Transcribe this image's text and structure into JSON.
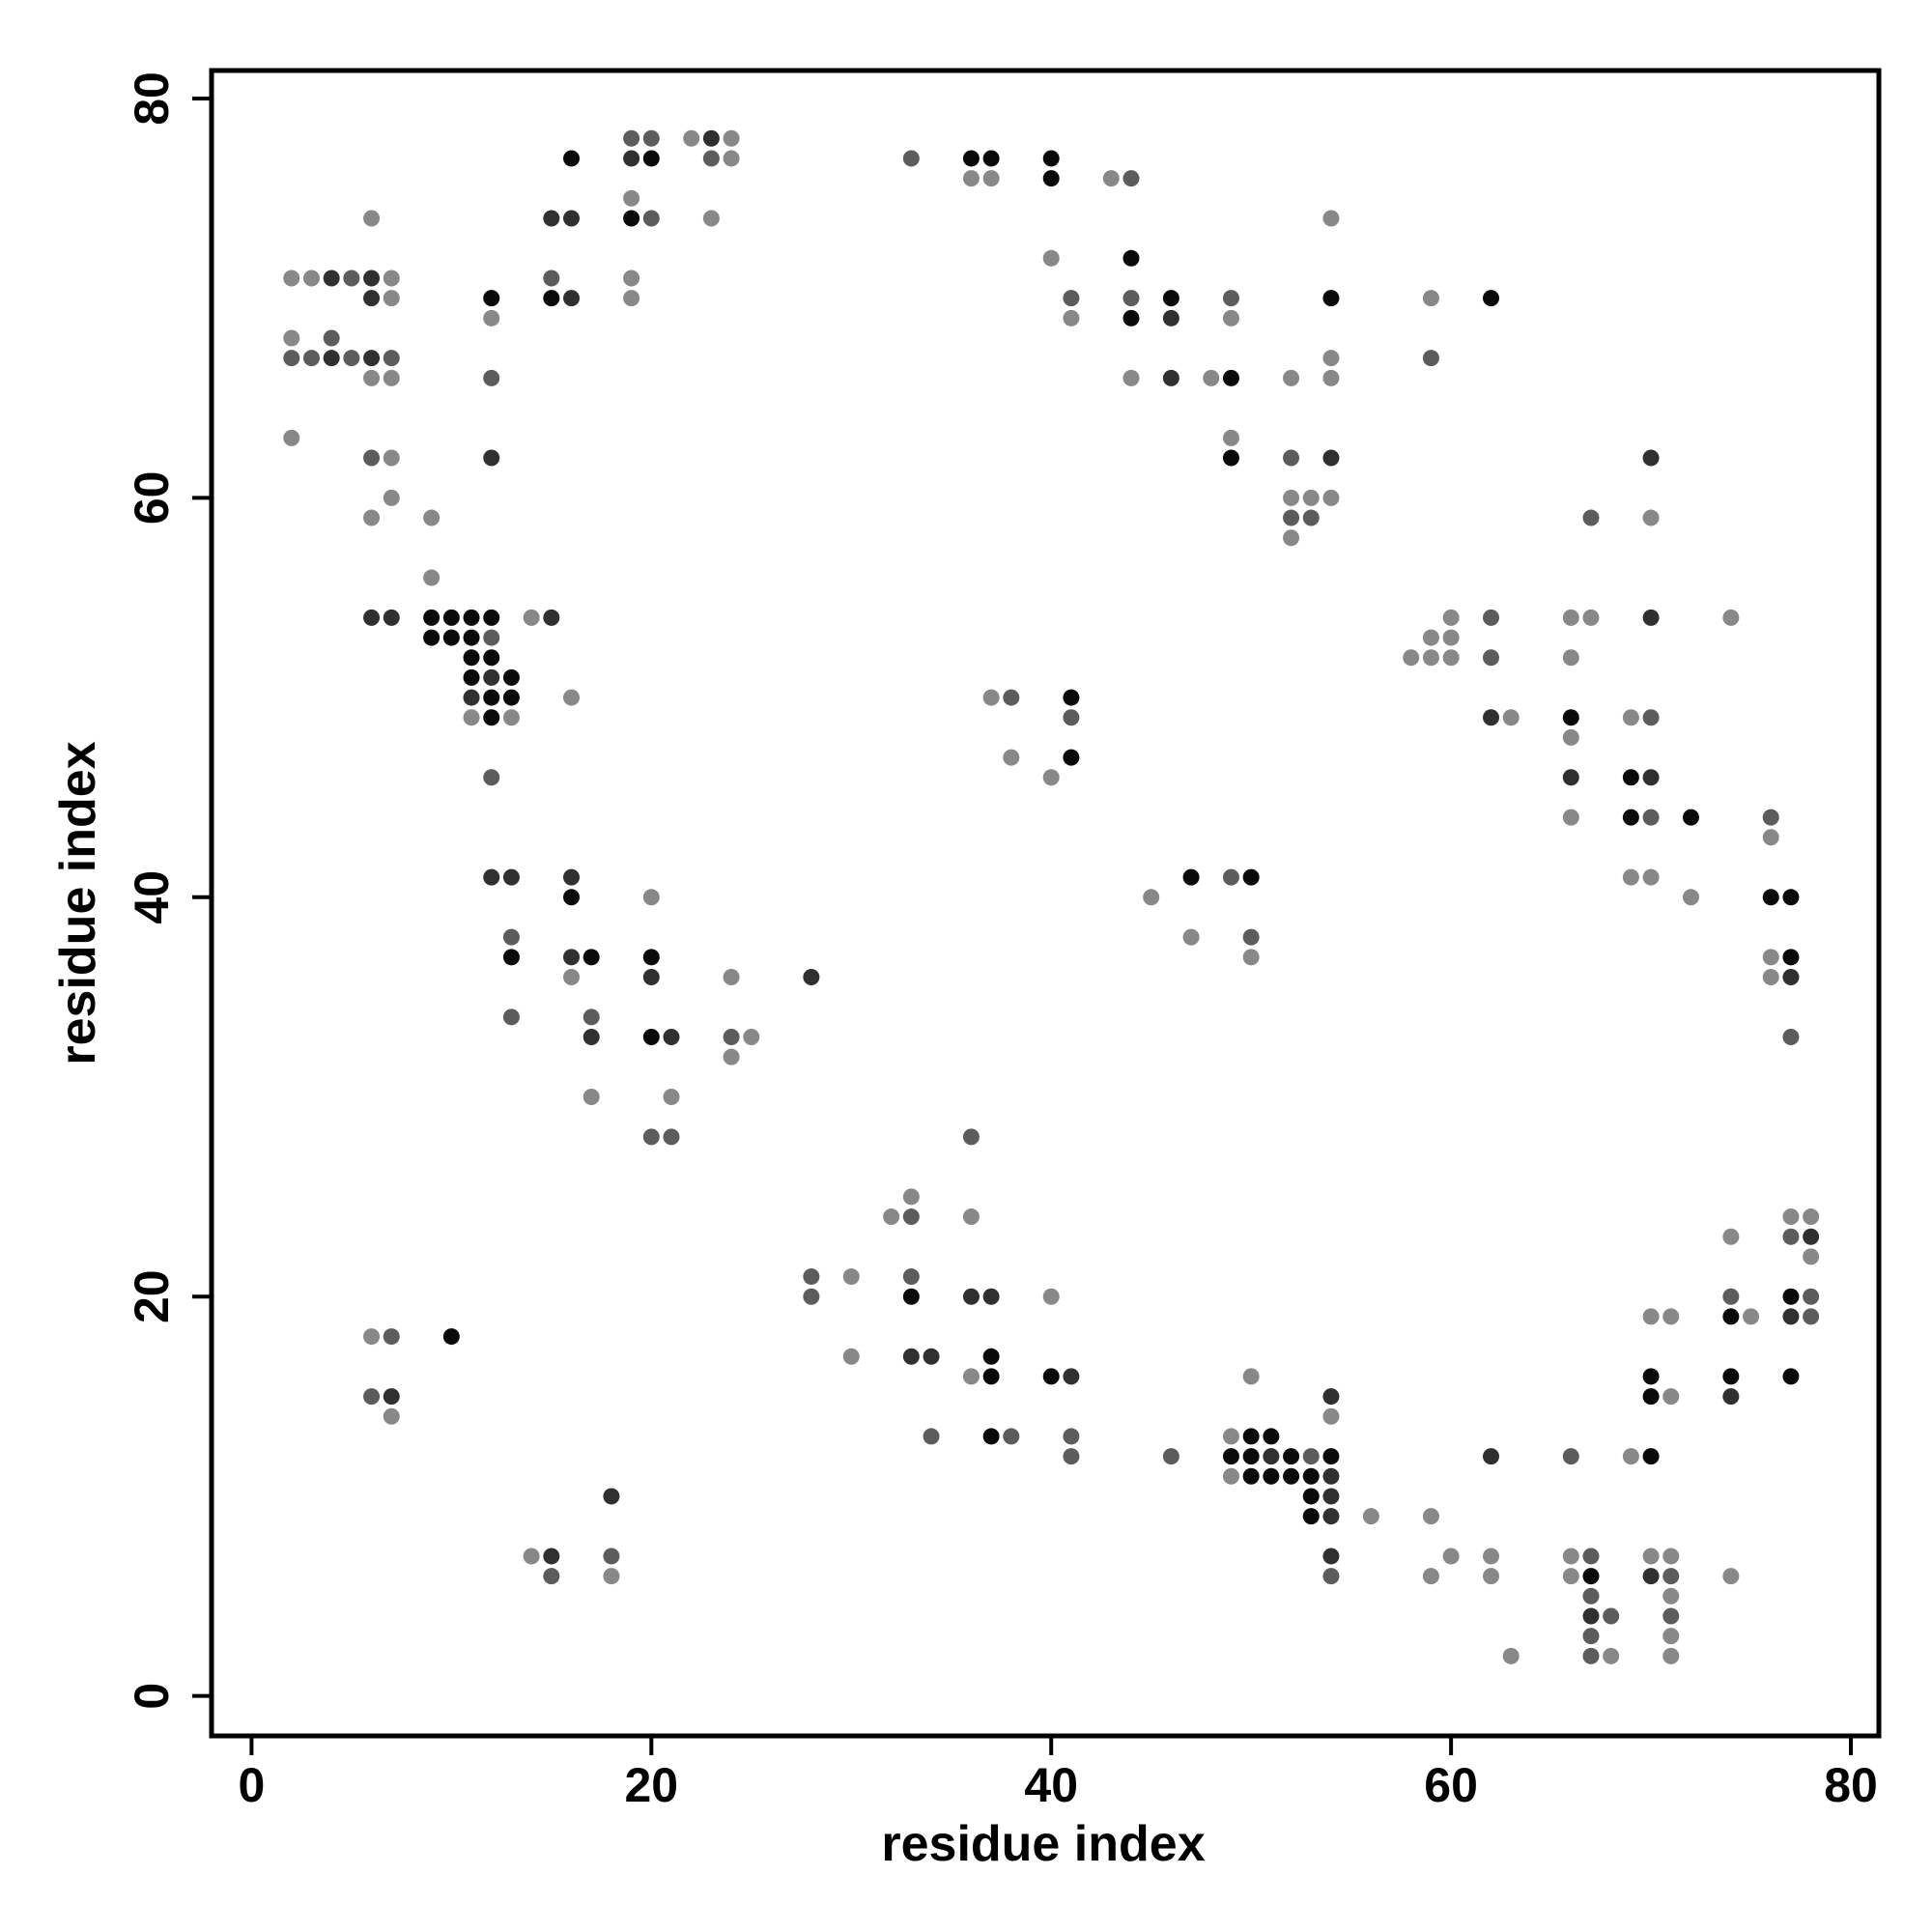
{
  "chart_data": {
    "type": "scatter",
    "title": "",
    "xlabel": "residue index",
    "ylabel": "residue index",
    "xlim": [
      -2,
      81.4
    ],
    "ylim": [
      -2,
      81.4
    ],
    "xticks": [
      0,
      20,
      40,
      60,
      80
    ],
    "yticks": [
      0,
      20,
      40,
      60,
      80
    ],
    "xtick_labels": [
      "0",
      "20",
      "40",
      "60",
      "80"
    ],
    "ytick_labels": [
      "0",
      "20",
      "40",
      "60",
      "80"
    ],
    "grid": false,
    "legend": "none",
    "shade_levels": {
      "1": "#888888",
      "2": "#5c5c5c",
      "3": "#303030",
      "4": "#0a0a0a"
    },
    "points": [
      [
        2,
        71,
        1
      ],
      [
        3,
        71,
        1
      ],
      [
        4,
        71,
        3
      ],
      [
        5,
        71,
        2
      ],
      [
        6,
        71,
        3
      ],
      [
        7,
        71,
        1
      ],
      [
        6,
        70,
        3
      ],
      [
        7,
        70,
        1
      ],
      [
        2,
        68,
        1
      ],
      [
        4,
        68,
        2
      ],
      [
        2,
        67,
        2
      ],
      [
        3,
        67,
        2
      ],
      [
        4,
        67,
        3
      ],
      [
        5,
        67,
        2
      ],
      [
        6,
        67,
        3
      ],
      [
        7,
        67,
        2
      ],
      [
        6,
        66,
        1
      ],
      [
        7,
        66,
        1
      ],
      [
        6,
        74,
        1
      ],
      [
        2,
        63,
        1
      ],
      [
        6,
        62,
        2
      ],
      [
        7,
        62,
        1
      ],
      [
        7,
        60,
        1
      ],
      [
        6,
        59,
        1
      ],
      [
        9,
        59,
        1
      ],
      [
        12,
        70,
        4
      ],
      [
        12,
        69,
        1
      ],
      [
        12,
        66,
        2
      ],
      [
        12,
        62,
        3
      ],
      [
        15,
        74,
        3
      ],
      [
        16,
        74,
        3
      ],
      [
        16,
        77,
        4
      ],
      [
        15,
        71,
        2
      ],
      [
        15,
        70,
        4
      ],
      [
        16,
        70,
        3
      ],
      [
        19,
        78,
        2
      ],
      [
        20,
        78,
        2
      ],
      [
        19,
        77,
        3
      ],
      [
        20,
        77,
        4
      ],
      [
        19,
        75,
        1
      ],
      [
        19,
        74,
        4
      ],
      [
        20,
        74,
        2
      ],
      [
        19,
        71,
        1
      ],
      [
        19,
        70,
        1
      ],
      [
        22,
        78,
        1
      ],
      [
        23,
        78,
        3
      ],
      [
        24,
        78,
        1
      ],
      [
        23,
        77,
        2
      ],
      [
        24,
        77,
        1
      ],
      [
        23,
        74,
        1
      ],
      [
        33,
        77,
        2
      ],
      [
        36,
        77,
        4
      ],
      [
        37,
        77,
        4
      ],
      [
        36,
        76,
        1
      ],
      [
        37,
        76,
        1
      ],
      [
        40,
        77,
        4
      ],
      [
        40,
        76,
        4
      ],
      [
        43,
        76,
        1
      ],
      [
        44,
        76,
        2
      ],
      [
        40,
        72,
        1
      ],
      [
        44,
        72,
        4
      ],
      [
        41,
        70,
        2
      ],
      [
        44,
        70,
        2
      ],
      [
        46,
        70,
        4
      ],
      [
        41,
        69,
        1
      ],
      [
        44,
        69,
        4
      ],
      [
        46,
        69,
        3
      ],
      [
        44,
        66,
        1
      ],
      [
        46,
        66,
        3
      ],
      [
        48,
        66,
        1
      ],
      [
        49,
        66,
        4
      ],
      [
        49,
        70,
        2
      ],
      [
        49,
        69,
        1
      ],
      [
        49,
        63,
        1
      ],
      [
        49,
        62,
        4
      ],
      [
        54,
        74,
        1
      ],
      [
        54,
        70,
        4
      ],
      [
        54,
        67,
        1
      ],
      [
        52,
        66,
        1
      ],
      [
        54,
        66,
        1
      ],
      [
        52,
        62,
        2
      ],
      [
        54,
        62,
        3
      ],
      [
        52,
        60,
        1
      ],
      [
        53,
        60,
        1
      ],
      [
        54,
        60,
        1
      ],
      [
        52,
        59,
        2
      ],
      [
        53,
        59,
        2
      ],
      [
        52,
        58,
        1
      ],
      [
        59,
        70,
        1
      ],
      [
        62,
        70,
        4
      ],
      [
        59,
        67,
        2
      ],
      [
        9,
        56,
        1
      ],
      [
        6,
        54,
        3
      ],
      [
        7,
        54,
        3
      ],
      [
        9,
        54,
        4
      ],
      [
        10,
        54,
        4
      ],
      [
        11,
        54,
        4
      ],
      [
        12,
        54,
        4
      ],
      [
        14,
        54,
        1
      ],
      [
        15,
        54,
        3
      ],
      [
        9,
        53,
        4
      ],
      [
        10,
        53,
        4
      ],
      [
        11,
        53,
        4
      ],
      [
        12,
        53,
        2
      ],
      [
        11,
        52,
        4
      ],
      [
        12,
        52,
        4
      ],
      [
        11,
        51,
        4
      ],
      [
        12,
        51,
        3
      ],
      [
        13,
        51,
        4
      ],
      [
        11,
        50,
        3
      ],
      [
        12,
        50,
        4
      ],
      [
        13,
        50,
        4
      ],
      [
        11,
        49,
        1
      ],
      [
        12,
        49,
        4
      ],
      [
        13,
        49,
        1
      ],
      [
        16,
        50,
        1
      ],
      [
        12,
        46,
        2
      ],
      [
        37,
        50,
        1
      ],
      [
        38,
        50,
        2
      ],
      [
        41,
        50,
        4
      ],
      [
        41,
        49,
        2
      ],
      [
        38,
        47,
        1
      ],
      [
        41,
        47,
        4
      ],
      [
        40,
        46,
        1
      ],
      [
        58,
        52,
        1
      ],
      [
        59,
        53,
        1
      ],
      [
        60,
        53,
        1
      ],
      [
        59,
        52,
        1
      ],
      [
        60,
        52,
        1
      ],
      [
        60,
        54,
        1
      ],
      [
        62,
        54,
        2
      ],
      [
        62,
        52,
        2
      ],
      [
        62,
        49,
        3
      ],
      [
        63,
        49,
        1
      ],
      [
        66,
        54,
        1
      ],
      [
        67,
        54,
        1
      ],
      [
        66,
        52,
        1
      ],
      [
        70,
        54,
        3
      ],
      [
        70,
        59,
        1
      ],
      [
        67,
        59,
        2
      ],
      [
        70,
        62,
        3
      ],
      [
        66,
        49,
        4
      ],
      [
        66,
        48,
        1
      ],
      [
        69,
        49,
        1
      ],
      [
        70,
        49,
        2
      ],
      [
        66,
        46,
        3
      ],
      [
        69,
        46,
        4
      ],
      [
        70,
        46,
        3
      ],
      [
        66,
        44,
        1
      ],
      [
        69,
        44,
        4
      ],
      [
        70,
        44,
        2
      ],
      [
        72,
        44,
        4
      ],
      [
        74,
        54,
        1
      ],
      [
        76,
        44,
        2
      ],
      [
        76,
        43,
        1
      ],
      [
        69,
        41,
        1
      ],
      [
        70,
        41,
        1
      ],
      [
        72,
        40,
        1
      ],
      [
        76,
        40,
        4
      ],
      [
        77,
        40,
        4
      ],
      [
        76,
        37,
        1
      ],
      [
        77,
        37,
        4
      ],
      [
        76,
        36,
        1
      ],
      [
        77,
        36,
        3
      ],
      [
        77,
        33,
        2
      ],
      [
        12,
        41,
        3
      ],
      [
        13,
        41,
        3
      ],
      [
        13,
        38,
        2
      ],
      [
        13,
        37,
        4
      ],
      [
        13,
        34,
        2
      ],
      [
        16,
        41,
        3
      ],
      [
        16,
        40,
        4
      ],
      [
        16,
        37,
        3
      ],
      [
        17,
        37,
        4
      ],
      [
        16,
        36,
        1
      ],
      [
        17,
        34,
        2
      ],
      [
        17,
        33,
        3
      ],
      [
        17,
        30,
        1
      ],
      [
        20,
        40,
        1
      ],
      [
        20,
        37,
        4
      ],
      [
        20,
        36,
        3
      ],
      [
        20,
        33,
        4
      ],
      [
        21,
        33,
        3
      ],
      [
        21,
        30,
        1
      ],
      [
        20,
        28,
        2
      ],
      [
        21,
        28,
        2
      ],
      [
        24,
        36,
        1
      ],
      [
        24,
        33,
        2
      ],
      [
        25,
        33,
        1
      ],
      [
        24,
        32,
        1
      ],
      [
        28,
        36,
        3
      ],
      [
        45,
        40,
        1
      ],
      [
        47,
        41,
        4
      ],
      [
        47,
        38,
        1
      ],
      [
        49,
        41,
        2
      ],
      [
        50,
        41,
        4
      ],
      [
        50,
        38,
        2
      ],
      [
        50,
        37,
        1
      ],
      [
        36,
        28,
        2
      ],
      [
        32,
        24,
        1
      ],
      [
        33,
        25,
        1
      ],
      [
        33,
        24,
        2
      ],
      [
        36,
        24,
        1
      ],
      [
        28,
        21,
        2
      ],
      [
        30,
        21,
        1
      ],
      [
        28,
        20,
        2
      ],
      [
        33,
        21,
        2
      ],
      [
        33,
        20,
        4
      ],
      [
        36,
        20,
        3
      ],
      [
        37,
        20,
        3
      ],
      [
        40,
        20,
        1
      ],
      [
        30,
        17,
        1
      ],
      [
        33,
        17,
        3
      ],
      [
        34,
        17,
        3
      ],
      [
        37,
        17,
        4
      ],
      [
        36,
        16,
        1
      ],
      [
        37,
        16,
        4
      ],
      [
        40,
        16,
        4
      ],
      [
        41,
        16,
        3
      ],
      [
        34,
        13,
        2
      ],
      [
        37,
        13,
        4
      ],
      [
        38,
        13,
        2
      ],
      [
        41,
        13,
        2
      ],
      [
        41,
        12,
        2
      ],
      [
        46,
        12,
        2
      ],
      [
        6,
        18,
        1
      ],
      [
        7,
        18,
        2
      ],
      [
        10,
        18,
        4
      ],
      [
        6,
        15,
        2
      ],
      [
        7,
        15,
        3
      ],
      [
        7,
        14,
        1
      ],
      [
        18,
        10,
        3
      ],
      [
        14,
        7,
        1
      ],
      [
        15,
        7,
        3
      ],
      [
        18,
        7,
        2
      ],
      [
        15,
        6,
        2
      ],
      [
        18,
        6,
        1
      ],
      [
        50,
        16,
        1
      ],
      [
        49,
        13,
        1
      ],
      [
        50,
        13,
        4
      ],
      [
        51,
        13,
        4
      ],
      [
        49,
        12,
        4
      ],
      [
        50,
        12,
        4
      ],
      [
        51,
        12,
        3
      ],
      [
        52,
        12,
        4
      ],
      [
        53,
        12,
        2
      ],
      [
        54,
        12,
        4
      ],
      [
        49,
        11,
        1
      ],
      [
        50,
        11,
        4
      ],
      [
        51,
        11,
        4
      ],
      [
        52,
        11,
        4
      ],
      [
        53,
        11,
        4
      ],
      [
        54,
        11,
        3
      ],
      [
        53,
        10,
        4
      ],
      [
        54,
        10,
        3
      ],
      [
        53,
        9,
        4
      ],
      [
        54,
        9,
        3
      ],
      [
        56,
        9,
        1
      ],
      [
        54,
        15,
        3
      ],
      [
        54,
        14,
        1
      ],
      [
        54,
        7,
        3
      ],
      [
        54,
        6,
        2
      ],
      [
        59,
        9,
        1
      ],
      [
        59,
        6,
        1
      ],
      [
        60,
        7,
        1
      ],
      [
        62,
        7,
        1
      ],
      [
        62,
        6,
        1
      ],
      [
        62,
        12,
        3
      ],
      [
        63,
        2,
        1
      ],
      [
        66,
        12,
        2
      ],
      [
        66,
        7,
        1
      ],
      [
        67,
        7,
        2
      ],
      [
        66,
        6,
        1
      ],
      [
        67,
        6,
        4
      ],
      [
        67,
        5,
        2
      ],
      [
        67,
        4,
        3
      ],
      [
        68,
        4,
        2
      ],
      [
        67,
        3,
        2
      ],
      [
        67,
        2,
        2
      ],
      [
        68,
        2,
        1
      ],
      [
        69,
        12,
        1
      ],
      [
        70,
        12,
        4
      ],
      [
        70,
        16,
        4
      ],
      [
        70,
        15,
        4
      ],
      [
        71,
        15,
        1
      ],
      [
        70,
        19,
        1
      ],
      [
        71,
        19,
        1
      ],
      [
        70,
        7,
        1
      ],
      [
        71,
        7,
        1
      ],
      [
        70,
        6,
        3
      ],
      [
        71,
        6,
        2
      ],
      [
        71,
        5,
        1
      ],
      [
        71,
        4,
        2
      ],
      [
        71,
        3,
        1
      ],
      [
        71,
        2,
        1
      ],
      [
        74,
        6,
        1
      ],
      [
        74,
        23,
        1
      ],
      [
        74,
        20,
        2
      ],
      [
        74,
        19,
        4
      ],
      [
        75,
        19,
        1
      ],
      [
        74,
        16,
        4
      ],
      [
        74,
        15,
        3
      ],
      [
        77,
        24,
        1
      ],
      [
        78,
        24,
        1
      ],
      [
        77,
        23,
        2
      ],
      [
        78,
        23,
        3
      ],
      [
        78,
        22,
        1
      ],
      [
        77,
        20,
        4
      ],
      [
        78,
        20,
        2
      ],
      [
        77,
        19,
        3
      ],
      [
        78,
        19,
        2
      ],
      [
        77,
        16,
        4
      ]
    ]
  }
}
